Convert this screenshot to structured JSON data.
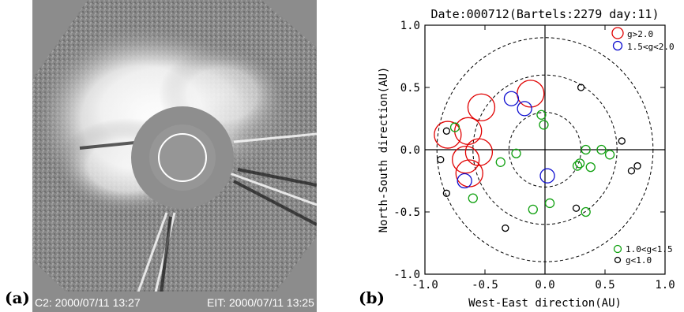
{
  "panels": {
    "a": {
      "label": "(a)",
      "caption_left": "C2: 2000/07/11 13:27",
      "caption_right": "EIT: 2000/07/11 13:25"
    },
    "b": {
      "label": "(b)"
    }
  },
  "chart_data": {
    "type": "scatter",
    "title": "Date:000712(Bartels:2279 day:11)",
    "xlabel": "West-East direction(AU)",
    "ylabel": "North-South direction(AU)",
    "xlim": [
      -1.0,
      1.0
    ],
    "ylim": [
      -1.0,
      1.0
    ],
    "xticks": [
      "-1.0",
      "-0.5",
      "0.0",
      "0.5",
      "1.0"
    ],
    "yticks": [
      "-1.0",
      "-0.5",
      "0.0",
      "0.5",
      "1.0"
    ],
    "reference_circles_radius_AU": [
      0.3,
      0.6,
      0.9
    ],
    "legend_position": "right",
    "series": [
      {
        "name": "g>2.0",
        "color": "#e00000",
        "points": [
          [
            -0.53,
            0.34
          ],
          [
            -0.12,
            0.45
          ],
          [
            -0.81,
            0.12
          ],
          [
            -0.64,
            0.15
          ],
          [
            -0.55,
            -0.02
          ],
          [
            -0.66,
            -0.08
          ],
          [
            -0.63,
            -0.19
          ]
        ]
      },
      {
        "name": "1.5<g<2.0",
        "color": "#1010d0",
        "points": [
          [
            -0.28,
            0.41
          ],
          [
            -0.17,
            0.33
          ],
          [
            -0.67,
            -0.25
          ],
          [
            0.02,
            -0.21
          ]
        ]
      },
      {
        "name": "1.0<g<1.5",
        "color": "#10a010",
        "points": [
          [
            -0.75,
            0.18
          ],
          [
            -0.03,
            0.28
          ],
          [
            -0.01,
            0.2
          ],
          [
            -0.6,
            -0.39
          ],
          [
            -0.37,
            -0.1
          ],
          [
            -0.24,
            -0.03
          ],
          [
            0.34,
            0.0
          ],
          [
            0.47,
            0.0
          ],
          [
            0.54,
            -0.04
          ],
          [
            0.27,
            -0.13
          ],
          [
            0.29,
            -0.11
          ],
          [
            0.38,
            -0.14
          ],
          [
            -0.1,
            -0.48
          ],
          [
            0.04,
            -0.43
          ],
          [
            0.34,
            -0.5
          ]
        ]
      },
      {
        "name": "g<1.0",
        "color": "#000000",
        "points": [
          [
            0.3,
            0.5
          ],
          [
            -0.82,
            0.15
          ],
          [
            -0.87,
            -0.08
          ],
          [
            0.64,
            0.07
          ],
          [
            0.77,
            -0.13
          ],
          [
            0.72,
            -0.17
          ],
          [
            -0.82,
            -0.35
          ],
          [
            0.26,
            -0.47
          ],
          [
            -0.33,
            -0.63
          ]
        ]
      }
    ]
  }
}
